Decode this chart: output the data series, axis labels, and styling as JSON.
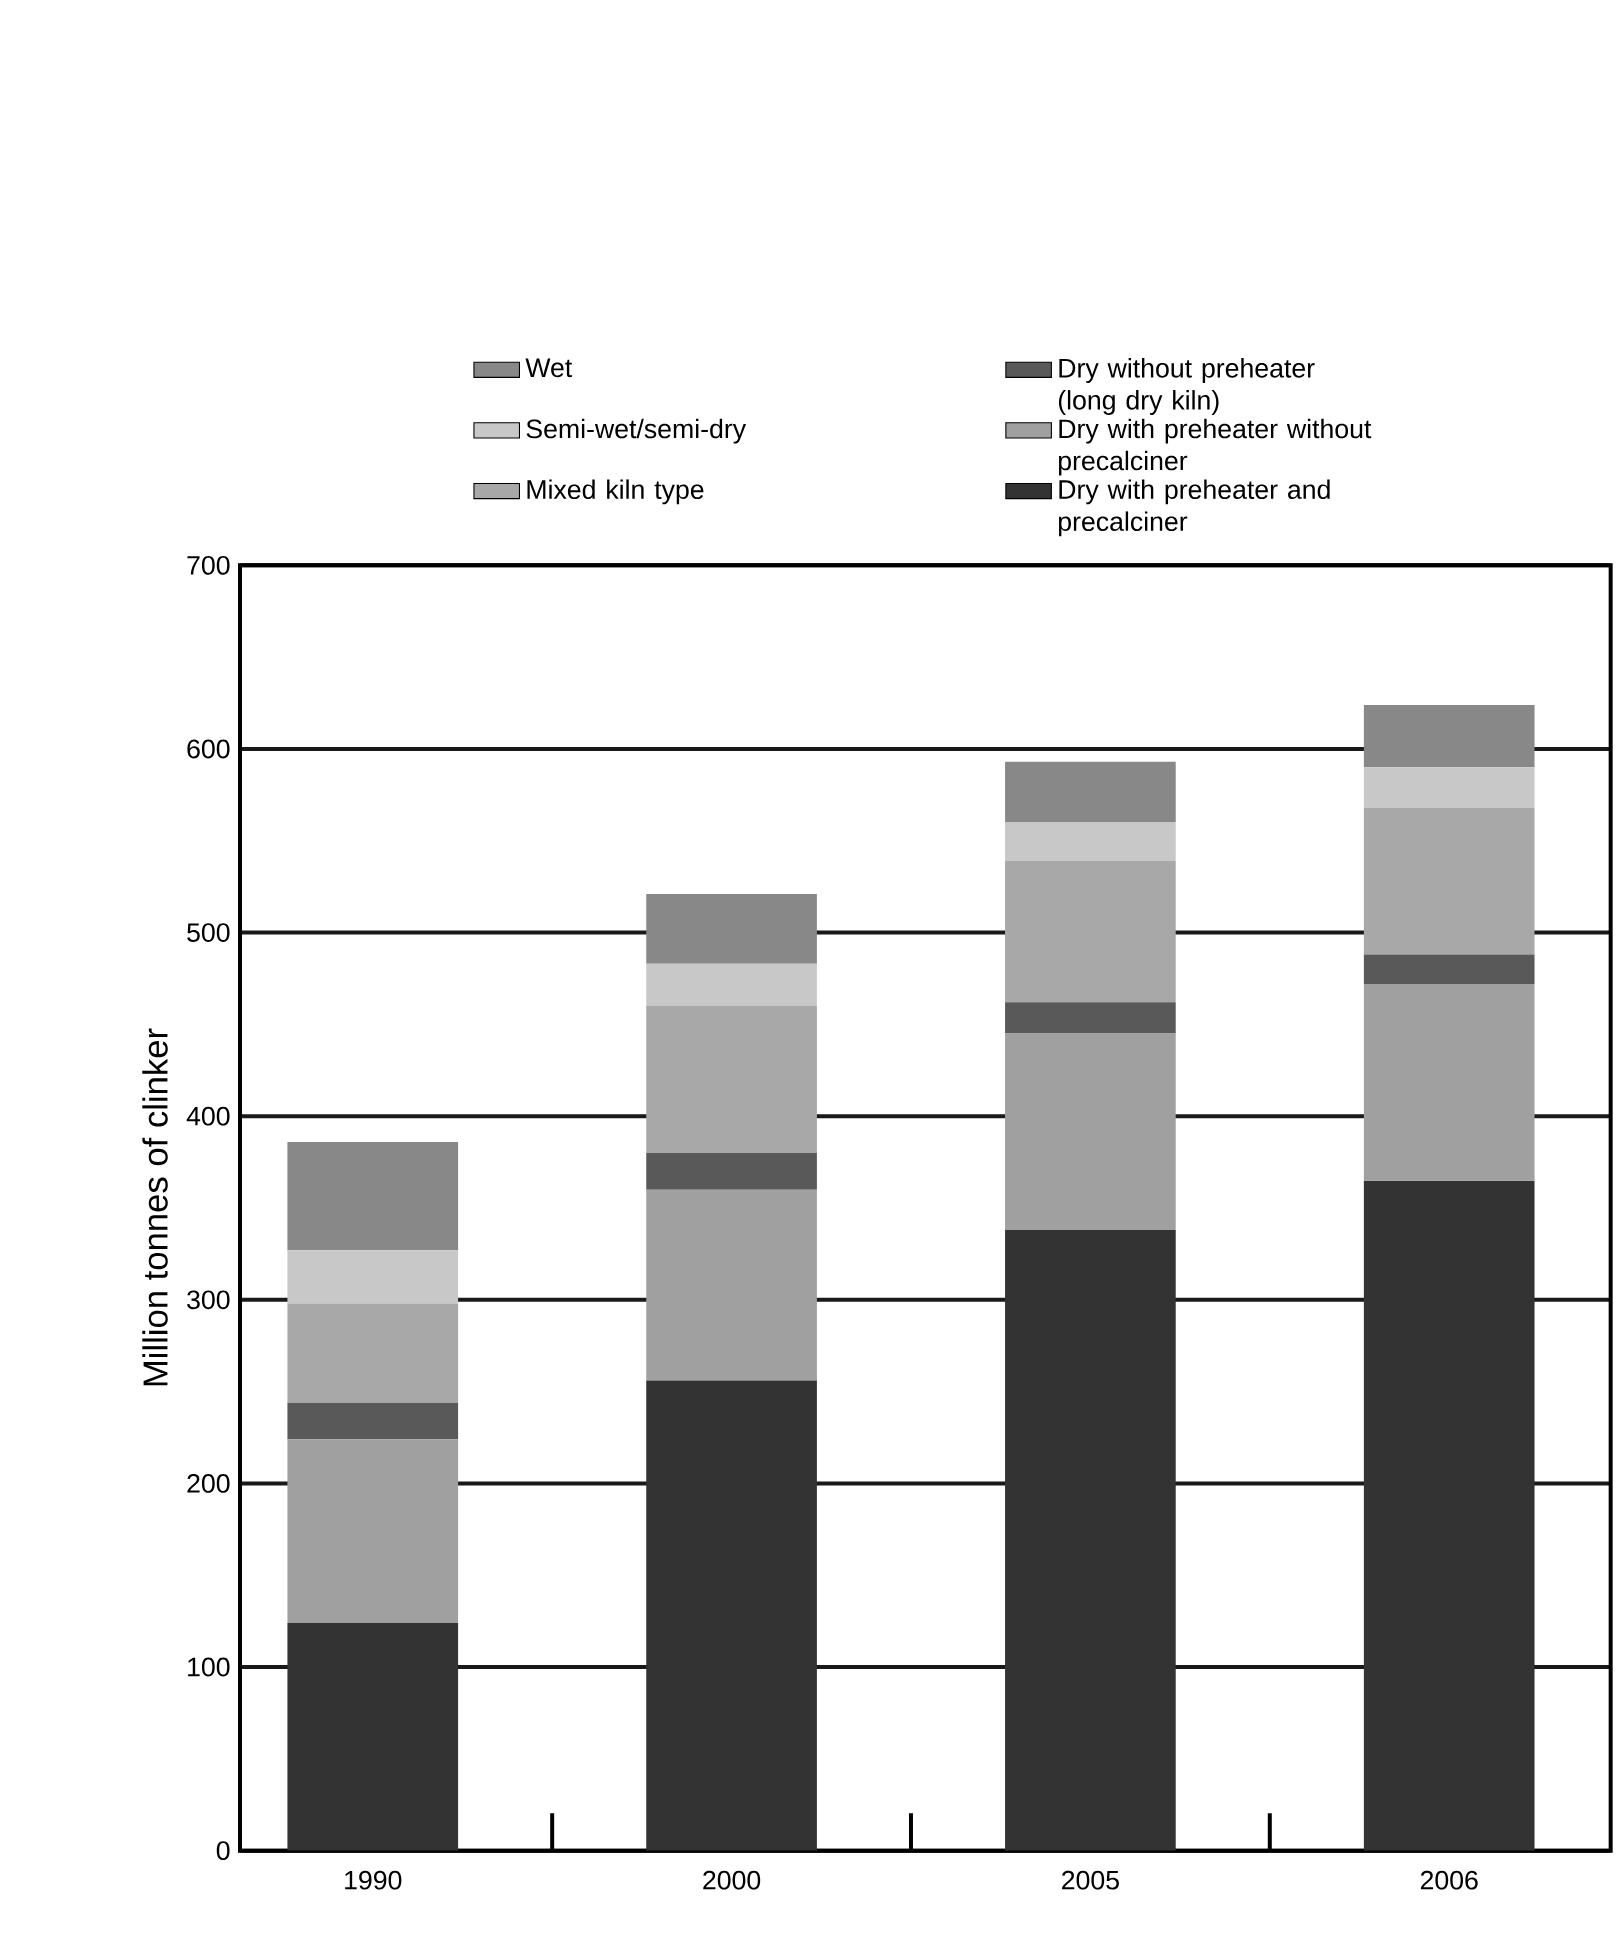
{
  "chart_data": {
    "type": "bar",
    "stacked": true,
    "ylabel": "Million tonnes of clinker",
    "categories": [
      "1990",
      "2000",
      "2005",
      "2006"
    ],
    "series": [
      {
        "name": "Dry with preheater and precalciner",
        "color": "#333333",
        "values": [
          124,
          256,
          338,
          365
        ]
      },
      {
        "name": "Dry with preheater without precalciner",
        "color": "#a0a0a0",
        "values": [
          100,
          104,
          107,
          107
        ]
      },
      {
        "name": "Dry without preheater (long dry kiln)",
        "color": "#595959",
        "values": [
          20,
          20,
          17,
          16
        ]
      },
      {
        "name": "Mixed kiln type",
        "color": "#a8a8a8",
        "values": [
          54,
          80,
          77,
          80
        ]
      },
      {
        "name": "Semi-wet/semi-dry",
        "color": "#c8c8c8",
        "values": [
          29,
          23,
          21,
          22
        ]
      },
      {
        "name": "Wet",
        "color": "#888888",
        "values": [
          59,
          38,
          33,
          34
        ]
      }
    ],
    "ylim": [
      0,
      700
    ],
    "yticks": [
      0,
      100,
      200,
      300,
      400,
      500,
      600,
      700
    ],
    "grid": "y",
    "legend": "top"
  }
}
